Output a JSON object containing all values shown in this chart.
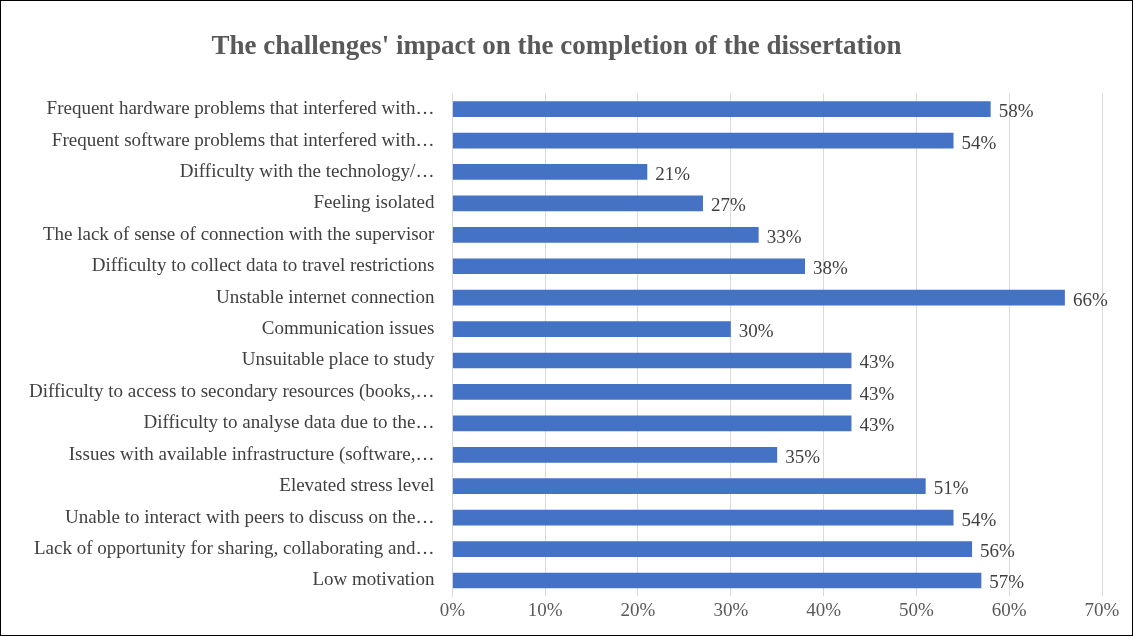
{
  "chart_data": {
    "type": "bar",
    "orientation": "horizontal",
    "title": "The challenges' impact on the completion of the dissertation",
    "categories": [
      "Frequent hardware problems that interfered with…",
      "Frequent software problems that interfered with…",
      "Difficulty with the technology/…",
      "Feeling isolated",
      "The lack of sense of connection with the supervisor",
      "Difficulty to collect data to travel restrictions",
      "Unstable internet connection",
      "Communication issues",
      "Unsuitable place to study",
      "Difficulty to access to secondary resources (books,…",
      "Difficulty to analyse data due to the…",
      "Issues with available infrastructure (software,…",
      "Elevated stress level",
      "Unable to interact with peers to discuss on the…",
      "Lack of opportunity for sharing, collaborating and…",
      "Low motivation"
    ],
    "values": [
      58,
      54,
      21,
      27,
      33,
      38,
      66,
      30,
      43,
      43,
      43,
      35,
      51,
      54,
      56,
      57
    ],
    "value_labels": [
      "58%",
      "54%",
      "21%",
      "27%",
      "33%",
      "38%",
      "66%",
      "30%",
      "43%",
      "43%",
      "43%",
      "35%",
      "51%",
      "54%",
      "56%",
      "57%"
    ],
    "color": "#4472c4",
    "xlim": [
      0,
      70
    ],
    "xticks": [
      {
        "value": 0,
        "label": "0%"
      },
      {
        "value": 10,
        "label": "10%"
      },
      {
        "value": 20,
        "label": "20%"
      },
      {
        "value": 30,
        "label": "30%"
      },
      {
        "value": 40,
        "label": "40%"
      },
      {
        "value": 50,
        "label": "50%"
      },
      {
        "value": 60,
        "label": "60%"
      },
      {
        "value": 70,
        "label": "70%"
      }
    ],
    "grid": "x",
    "legend": false
  }
}
